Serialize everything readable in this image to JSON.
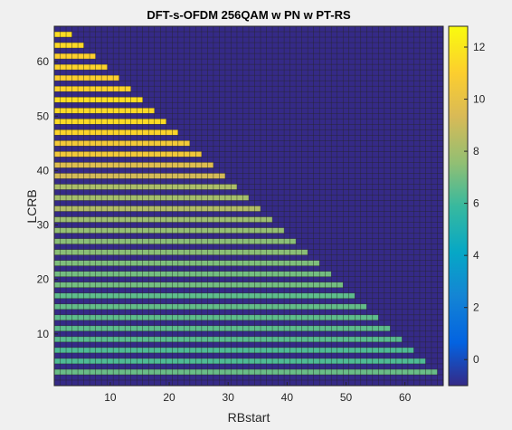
{
  "chart_data": {
    "type": "heatmap",
    "title": "DFT-s-OFDM 256QAM w PN w PT-RS",
    "xlabel": "RBstart",
    "ylabel": "LCRB",
    "x_range": [
      1,
      66
    ],
    "y_range": [
      1,
      66
    ],
    "xticks": [
      10,
      20,
      30,
      40,
      50,
      60
    ],
    "yticks": [
      10,
      20,
      30,
      40,
      50,
      60
    ],
    "colorbar": {
      "range": [
        -1,
        12.8
      ],
      "ticks": [
        0,
        2,
        4,
        6,
        8,
        10,
        12
      ],
      "colormap": "parula"
    },
    "empty_value": -1,
    "cells_note": "rows keyed by LCRB; each row lists [start, end, value] runs along RBstart; unlisted cells = empty_value",
    "rows": {
      "3": [
        [
          1,
          65,
          6.8
        ]
      ],
      "5": [
        [
          1,
          63,
          6.3
        ]
      ],
      "7": [
        [
          1,
          61,
          6.3
        ]
      ],
      "9": [
        [
          1,
          59,
          6.5
        ]
      ],
      "11": [
        [
          1,
          57,
          6.6
        ]
      ],
      "13": [
        [
          1,
          55,
          6.6
        ]
      ],
      "15": [
        [
          1,
          53,
          6.7
        ]
      ],
      "17": [
        [
          1,
          51,
          6.6
        ]
      ],
      "19": [
        [
          1,
          49,
          7.0
        ]
      ],
      "21": [
        [
          1,
          47,
          7.0
        ]
      ],
      "23": [
        [
          1,
          45,
          7.2
        ]
      ],
      "25": [
        [
          1,
          43,
          7.4
        ]
      ],
      "27": [
        [
          1,
          41,
          7.4
        ]
      ],
      "29": [
        [
          1,
          39,
          7.6
        ]
      ],
      "31": [
        [
          1,
          37,
          7.8
        ]
      ],
      "33": [
        [
          1,
          35,
          8.4
        ]
      ],
      "35": [
        [
          1,
          33,
          8.0
        ]
      ],
      "37": [
        [
          1,
          31,
          8.2
        ]
      ],
      "39": [
        [
          1,
          29,
          9.2
        ]
      ],
      "41": [
        [
          1,
          27,
          9.6
        ]
      ],
      "43": [
        [
          1,
          25,
          10.5
        ]
      ],
      "45": [
        [
          1,
          23,
          10.6
        ]
      ],
      "47": [
        [
          1,
          21,
          11.2
        ]
      ],
      "49": [
        [
          1,
          19,
          11.5
        ]
      ],
      "51": [
        [
          1,
          17,
          11.4
        ]
      ],
      "53": [
        [
          1,
          15,
          11.6
        ]
      ],
      "55": [
        [
          1,
          13,
          11.2
        ]
      ],
      "57": [
        [
          1,
          11,
          11.0
        ]
      ],
      "59": [
        [
          1,
          9,
          11.2
        ]
      ],
      "61": [
        [
          1,
          7,
          11.0
        ]
      ],
      "63": [
        [
          1,
          5,
          11.4
        ]
      ],
      "65": [
        [
          1,
          3,
          11.6
        ]
      ]
    }
  }
}
